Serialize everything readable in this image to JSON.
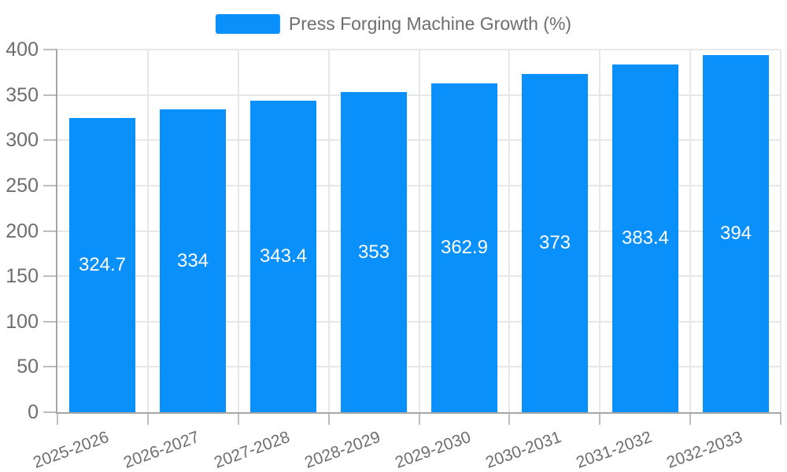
{
  "legend": {
    "label": "Press Forging Machine Growth (%)"
  },
  "colors": {
    "bar": "#0a90fa",
    "grid": "#e7e7e7",
    "axis": "#a6a6a6",
    "tick": "#bdbdbd",
    "text": "#6e6e6e",
    "value_text": "#ffffff"
  },
  "chart_data": {
    "type": "bar",
    "title": "Press Forging Machine Growth (%)",
    "categories": [
      "2025-2026",
      "2026-2027",
      "2027-2028",
      "2028-2029",
      "2029-2030",
      "2030-2031",
      "2031-2032",
      "2032-2033"
    ],
    "values": [
      324.7,
      334,
      343.4,
      353,
      362.9,
      373,
      383.4,
      394
    ],
    "value_labels": [
      "324.7",
      "334",
      "343.4",
      "353",
      "362.9",
      "373",
      "383.4",
      "394"
    ],
    "ytick_labels": [
      "0",
      "50",
      "100",
      "150",
      "200",
      "250",
      "300",
      "350",
      "400"
    ],
    "xlabel": "",
    "ylabel": "",
    "ylim": [
      0,
      400
    ],
    "ytick_step": 50,
    "grid": true,
    "legend_position": "top",
    "value_label_position": "inside-center",
    "xtick_rotation_deg": -20
  }
}
